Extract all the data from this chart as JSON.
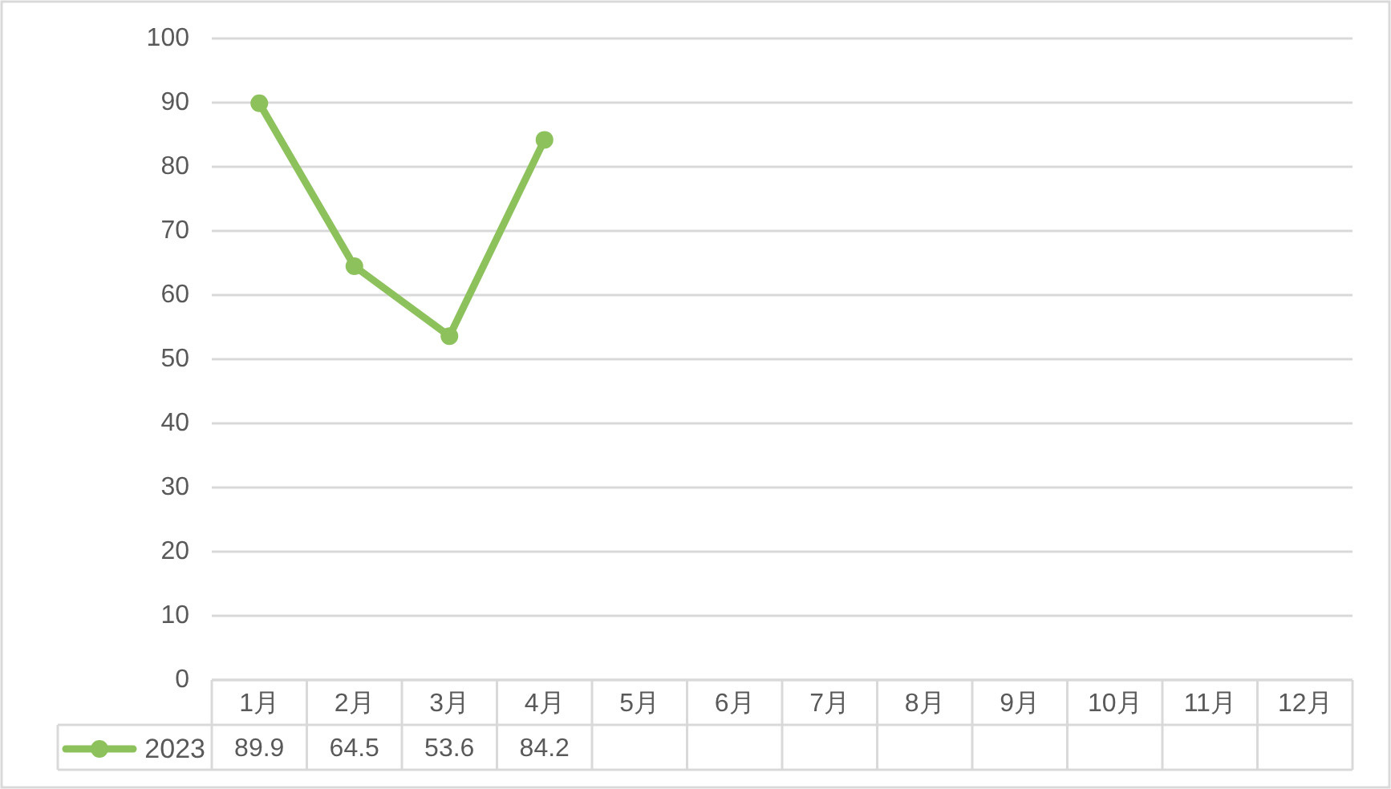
{
  "chart_data": {
    "type": "line",
    "categories": [
      "1月",
      "2月",
      "3月",
      "4月",
      "5月",
      "6月",
      "7月",
      "8月",
      "9月",
      "10月",
      "11月",
      "12月"
    ],
    "series": [
      {
        "name": "2023",
        "color": "#8cc15c",
        "values": [
          89.9,
          64.5,
          53.6,
          84.2,
          null,
          null,
          null,
          null,
          null,
          null,
          null,
          null
        ]
      }
    ],
    "ylim": [
      0,
      100
    ],
    "yticks": [
      0,
      10,
      20,
      30,
      40,
      50,
      60,
      70,
      80,
      90,
      100
    ],
    "grid": "y",
    "marker": "circle",
    "line_style": "solid",
    "data_labels": true,
    "legend": "bottom"
  }
}
